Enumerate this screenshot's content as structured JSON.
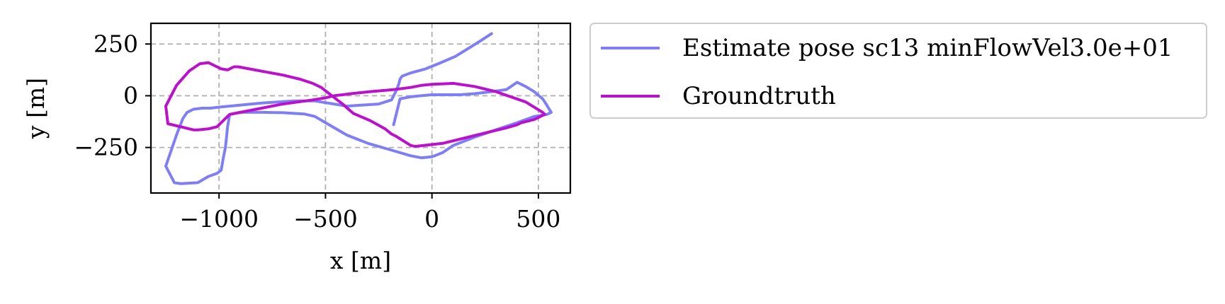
{
  "chart_data": {
    "type": "line",
    "title": "",
    "xlabel": "x [m]",
    "ylabel": "y [m]",
    "xlim": [
      -1320,
      650
    ],
    "ylim": [
      -470,
      350
    ],
    "xticks": [
      -1000,
      -500,
      0,
      500
    ],
    "xtick_labels": [
      "−1000",
      "−500",
      "0",
      "500"
    ],
    "yticks": [
      -250,
      0,
      250
    ],
    "ytick_labels": [
      "−250",
      "0",
      "250"
    ],
    "grid": true,
    "legend_position": "outside-right-top",
    "series": [
      {
        "name": "Estimate pose sc13 minFlowVel3.0e+01",
        "color": "#7f7ff5",
        "x": [
          280,
          220,
          110,
          30,
          -30,
          -100,
          -140,
          -150,
          -155,
          -165,
          -190,
          -250,
          -400,
          -490,
          -550,
          -580,
          -650,
          -800,
          -950,
          -1000,
          -1040,
          -1080,
          -1120,
          -1150,
          -1170,
          -1200,
          -1250,
          -1210,
          -1180,
          -1100,
          -1050,
          -1010,
          -990,
          -980,
          -970,
          -960,
          -950,
          -900,
          -800,
          -700,
          -600,
          -550,
          -500,
          -400,
          -300,
          -200,
          -100,
          -50,
          0,
          50,
          100,
          200,
          300,
          400,
          480,
          540,
          560,
          530,
          520,
          480,
          440,
          400,
          350,
          280,
          200,
          130,
          80,
          0,
          -50,
          -100,
          -150,
          -180
        ],
        "y": [
          300,
          260,
          190,
          155,
          130,
          110,
          95,
          80,
          60,
          30,
          -20,
          -40,
          -50,
          -35,
          -25,
          -25,
          -25,
          -35,
          -50,
          -55,
          -60,
          -60,
          -65,
          -80,
          -110,
          -190,
          -340,
          -420,
          -425,
          -420,
          -390,
          -375,
          -360,
          -300,
          -250,
          -150,
          -90,
          -80,
          -80,
          -82,
          -88,
          -100,
          -130,
          -190,
          -230,
          -260,
          -290,
          -300,
          -295,
          -275,
          -240,
          -200,
          -165,
          -130,
          -100,
          -90,
          -80,
          -30,
          -15,
          20,
          45,
          65,
          30,
          20,
          10,
          5,
          5,
          5,
          0,
          -5,
          -15,
          -140
        ]
      },
      {
        "name": "Groundtruth",
        "color": "#bb11cc",
        "x": [
          -910,
          -700,
          -620,
          -560,
          -520,
          -470,
          -420,
          -370,
          -290,
          -220,
          -190,
          -170,
          -100,
          -80,
          50,
          130,
          250,
          350,
          400,
          420,
          480,
          510,
          530,
          520,
          440,
          300,
          200,
          100,
          0,
          -50,
          -100,
          -180,
          -290,
          -380,
          -420,
          -460,
          -500,
          -560,
          -700,
          -800,
          -900,
          -950,
          -970,
          -1000,
          -1010,
          -1050,
          -1100,
          -1120,
          -1240,
          -1250,
          -1200,
          -1140,
          -1090,
          -1050,
          -1020,
          -990,
          -960,
          -940,
          -930,
          -910
        ],
        "y": [
          140,
          100,
          80,
          60,
          40,
          0,
          -40,
          -85,
          -120,
          -160,
          -185,
          -195,
          -240,
          -245,
          -230,
          -210,
          -180,
          -155,
          -140,
          -130,
          -115,
          -100,
          -90,
          -80,
          -30,
          20,
          45,
          60,
          55,
          50,
          40,
          30,
          20,
          10,
          5,
          0,
          -10,
          -20,
          -40,
          -60,
          -80,
          -90,
          -110,
          -140,
          -150,
          -160,
          -165,
          -165,
          -135,
          -50,
          50,
          120,
          155,
          160,
          145,
          130,
          125,
          135,
          140,
          140
        ]
      }
    ]
  }
}
